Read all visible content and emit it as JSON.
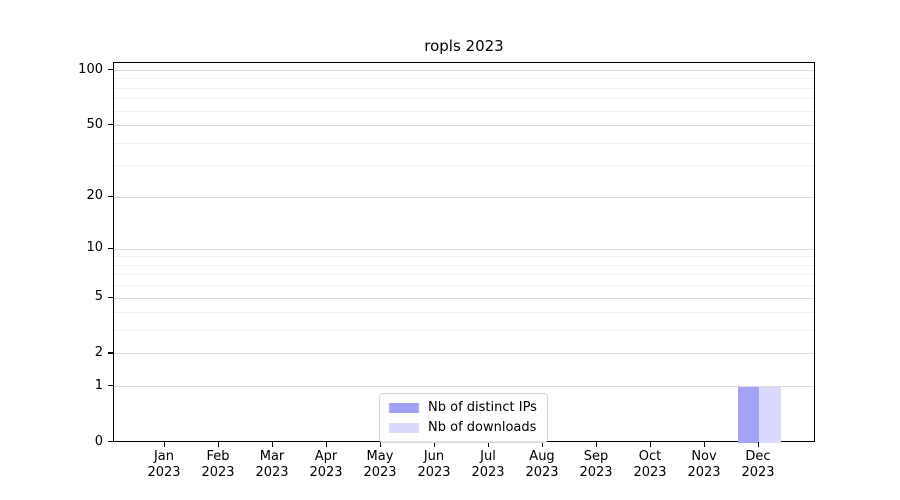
{
  "title": "ropls 2023",
  "chart_data": {
    "type": "bar",
    "title": "ropls 2023",
    "xlabel": "",
    "ylabel": "",
    "categories": [
      "Jan 2023",
      "Feb 2023",
      "Mar 2023",
      "Apr 2023",
      "May 2023",
      "Jun 2023",
      "Jul 2023",
      "Aug 2023",
      "Sep 2023",
      "Oct 2023",
      "Nov 2023",
      "Dec 2023"
    ],
    "series": [
      {
        "name": "Nb of distinct IPs",
        "color": "#a3a3f3",
        "values": [
          0,
          0,
          0,
          0,
          0,
          0,
          0,
          0,
          0,
          0,
          0,
          1
        ]
      },
      {
        "name": "Nb of downloads",
        "color": "#d9d9f9",
        "values": [
          0,
          0,
          0,
          0,
          0,
          0,
          0,
          0,
          0,
          0,
          0,
          1
        ]
      }
    ],
    "y_axis": {
      "scale": "log1p",
      "tick_labels": [
        "0",
        "1",
        "2",
        "5",
        "10",
        "20",
        "50",
        "100"
      ],
      "tick_values": [
        0,
        1,
        2,
        5,
        10,
        20,
        50,
        100
      ],
      "minor_grid_values": [
        3,
        4,
        6,
        7,
        8,
        9,
        30,
        40,
        60,
        70,
        80,
        90
      ],
      "ylim": [
        0,
        100
      ]
    },
    "grid": "on",
    "legend_position": "lower-center"
  },
  "legend": {
    "items": [
      {
        "label": "Nb of distinct IPs",
        "color": "#a3a3f3"
      },
      {
        "label": "Nb of downloads",
        "color": "#d9d9f9"
      }
    ]
  }
}
